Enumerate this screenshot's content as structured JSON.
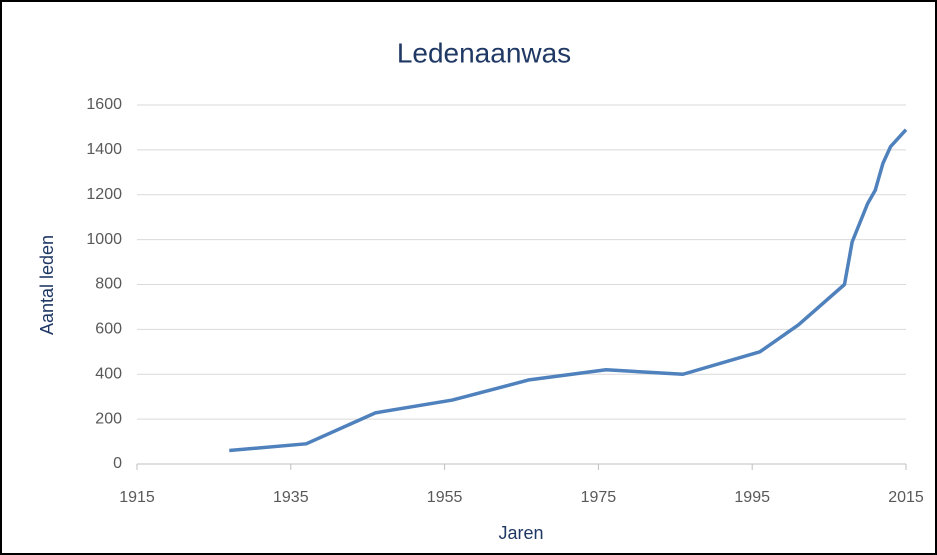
{
  "chart_data": {
    "type": "line",
    "title": "Ledenaanwas",
    "xlabel": "Jaren",
    "ylabel": "Aantal leden",
    "series": [
      {
        "name": "Aantal leden",
        "color": "#4f81bd",
        "x": [
          1927,
          1937,
          1946,
          1956,
          1966,
          1976,
          1986,
          1996,
          2001,
          2007,
          2008,
          2010,
          2011,
          2012,
          2013,
          2015
        ],
        "values": [
          60,
          90,
          228,
          285,
          375,
          420,
          400,
          500,
          620,
          800,
          990,
          1160,
          1220,
          1340,
          1415,
          1490
        ]
      }
    ],
    "xlim": [
      1915,
      2015
    ],
    "xticks": [
      1915,
      1935,
      1955,
      1975,
      1995,
      2015
    ],
    "ylim": [
      0,
      1600
    ],
    "yticks": [
      0,
      200,
      400,
      600,
      800,
      1000,
      1200,
      1400,
      1600
    ],
    "grid": true
  }
}
